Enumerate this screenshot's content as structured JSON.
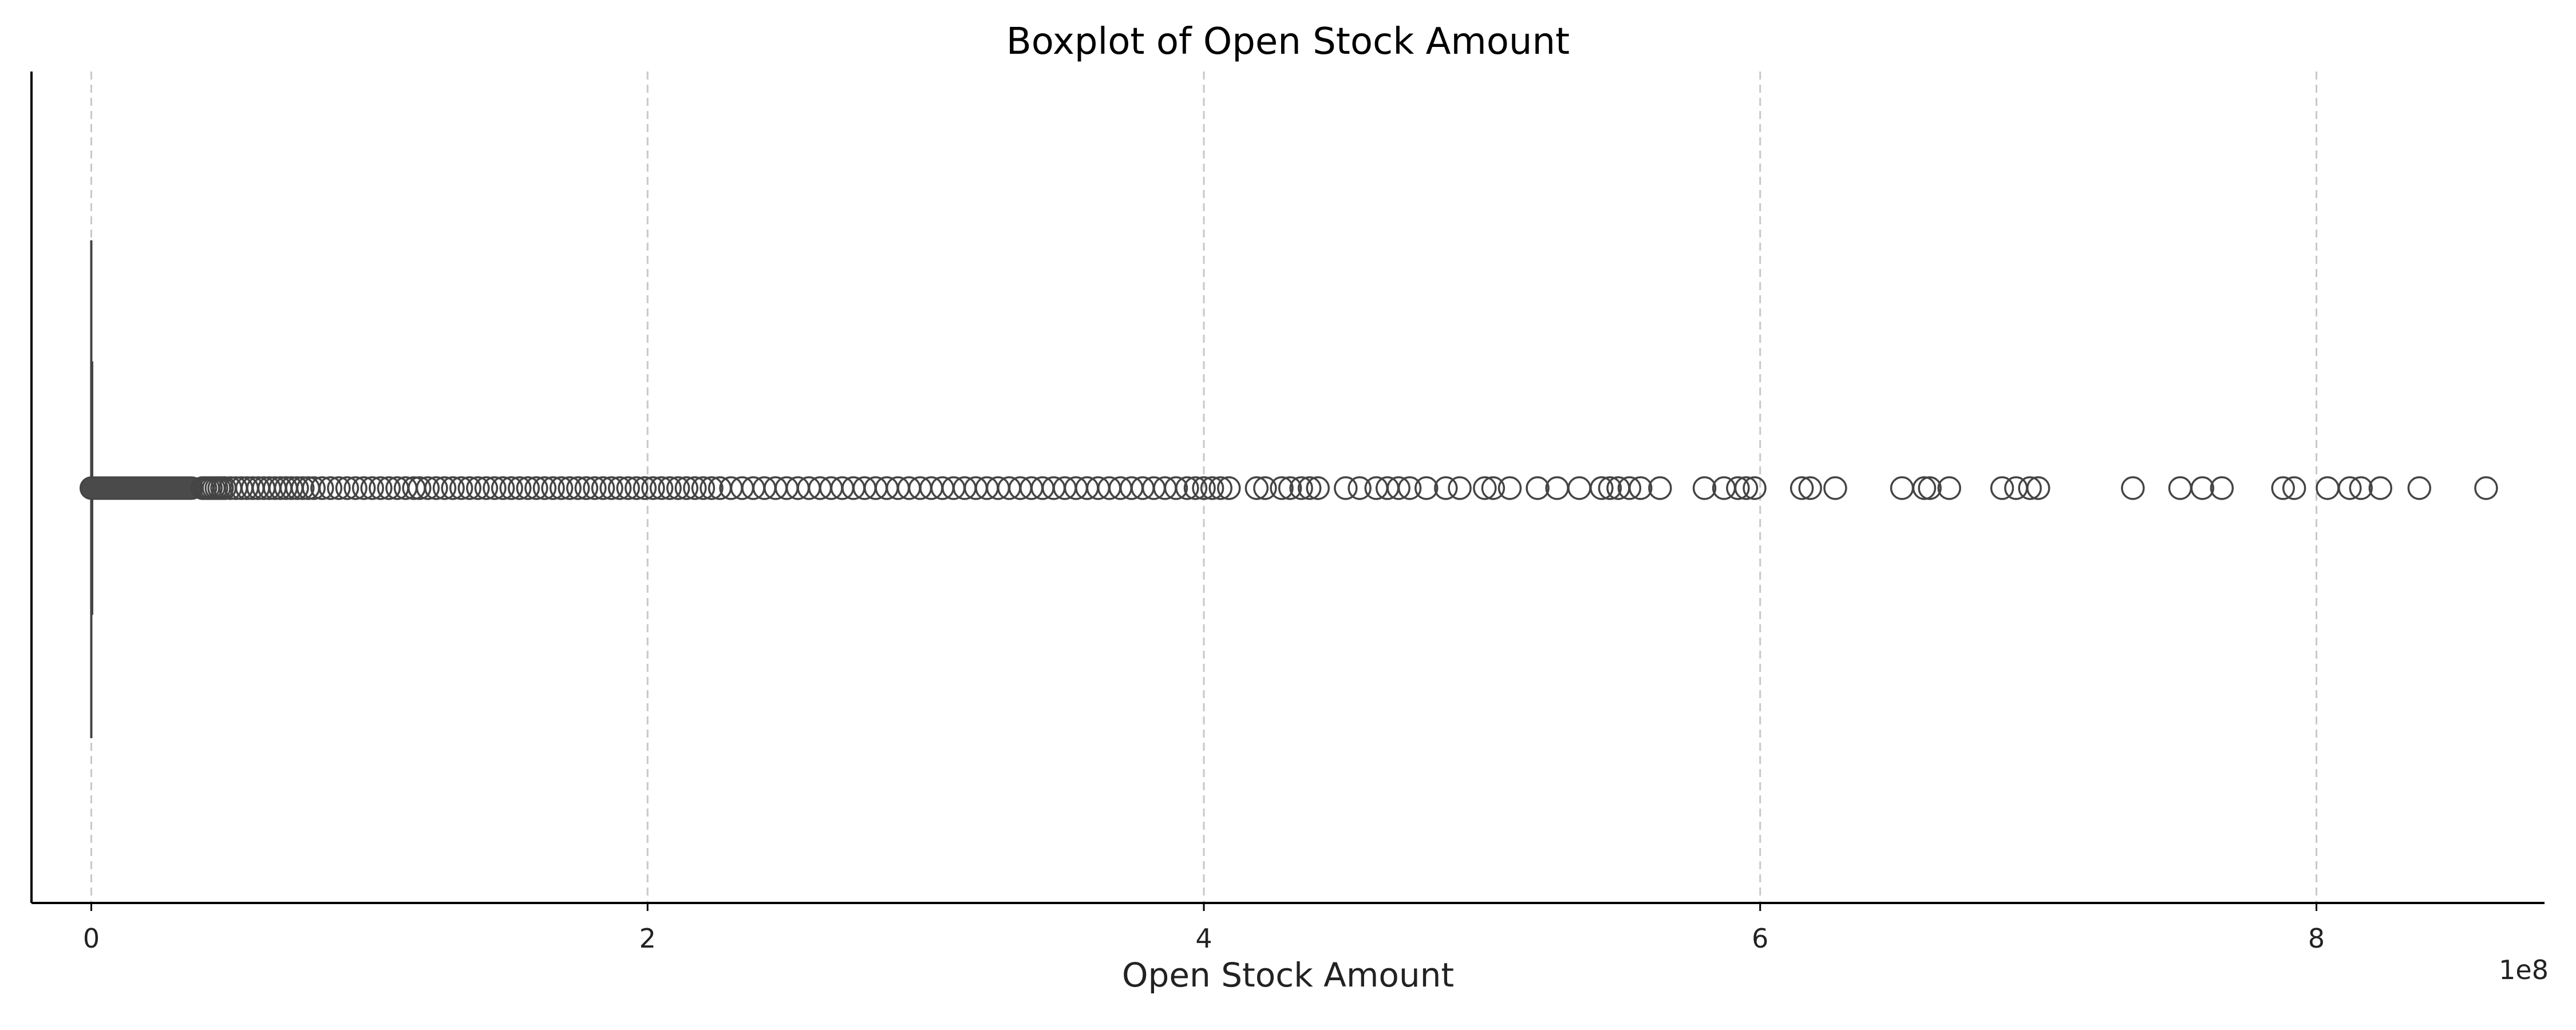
{
  "chart_data": {
    "type": "box",
    "title": "Boxplot of Open Stock Amount",
    "xlabel": "Open Stock Amount",
    "ylabel": "",
    "orientation": "horizontal",
    "axis_offset_label": "1e8",
    "axis_multiplier": 100000000,
    "x_tick_values": [
      0,
      2,
      4,
      6,
      8
    ],
    "x_tick_labels": [
      "0",
      "2",
      "4",
      "6",
      "8"
    ],
    "xlim": [
      -0.215,
      8.82
    ],
    "grid": {
      "x": true,
      "y": false,
      "style": "dashed"
    },
    "box": {
      "min": 0,
      "q1": 0,
      "median": 0,
      "q3": 0,
      "whisker_low": 0,
      "whisker_high": 0.008
    },
    "outliers": [
      0.4,
      0.41,
      0.42,
      0.43,
      0.44,
      0.45,
      0.46,
      0.47,
      0.48,
      0.5,
      0.52,
      0.54,
      0.56,
      0.58,
      0.6,
      0.62,
      0.64,
      0.66,
      0.68,
      0.7,
      0.72,
      0.74,
      0.76,
      0.78,
      0.8,
      0.83,
      0.86,
      0.89,
      0.92,
      0.95,
      0.98,
      1.01,
      1.04,
      1.07,
      1.1,
      1.13,
      1.16,
      1.18,
      1.21,
      1.24,
      1.27,
      1.3,
      1.33,
      1.36,
      1.39,
      1.42,
      1.45,
      1.48,
      1.51,
      1.54,
      1.57,
      1.6,
      1.63,
      1.66,
      1.69,
      1.72,
      1.75,
      1.78,
      1.81,
      1.84,
      1.87,
      1.9,
      1.93,
      1.96,
      1.99,
      2.02,
      2.05,
      2.08,
      2.11,
      2.14,
      2.17,
      2.2,
      2.23,
      2.26,
      2.3,
      2.34,
      2.38,
      2.42,
      2.46,
      2.5,
      2.54,
      2.58,
      2.62,
      2.66,
      2.7,
      2.74,
      2.78,
      2.82,
      2.86,
      2.9,
      2.94,
      2.98,
      3.02,
      3.06,
      3.1,
      3.14,
      3.18,
      3.22,
      3.26,
      3.3,
      3.34,
      3.38,
      3.42,
      3.46,
      3.5,
      3.54,
      3.58,
      3.62,
      3.66,
      3.7,
      3.74,
      3.78,
      3.82,
      3.86,
      3.9,
      3.94,
      3.97,
      4.0,
      4.03,
      4.06,
      4.09,
      4.19,
      4.22,
      4.28,
      4.31,
      4.35,
      4.38,
      4.41,
      4.51,
      4.56,
      4.62,
      4.66,
      4.7,
      4.74,
      4.8,
      4.87,
      4.92,
      5.01,
      5.04,
      5.1,
      5.2,
      5.27,
      5.35,
      5.43,
      5.46,
      5.49,
      5.53,
      5.57,
      5.64,
      5.8,
      5.87,
      5.92,
      5.95,
      5.98,
      6.15,
      6.18,
      6.27,
      6.51,
      6.59,
      6.61,
      6.68,
      6.87,
      6.92,
      6.97,
      7.0,
      7.34,
      7.51,
      7.59,
      7.66,
      7.88,
      7.92,
      8.04,
      8.12,
      8.16,
      8.23,
      8.37,
      8.61
    ]
  }
}
